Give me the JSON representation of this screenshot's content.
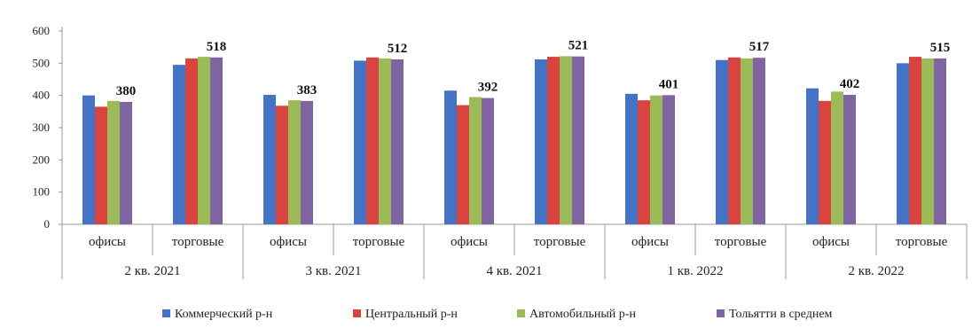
{
  "chart_data": {
    "type": "bar",
    "ylim": [
      0,
      600
    ],
    "yticks": [
      0,
      100,
      200,
      300,
      400,
      500,
      600
    ],
    "grid": false,
    "legend_position": "bottom",
    "groups": [
      {
        "label": "2 кв. 2021",
        "categories": [
          "офисы",
          "торговые"
        ]
      },
      {
        "label": "3 кв. 2021",
        "categories": [
          "офисы",
          "торговые"
        ]
      },
      {
        "label": "4 кв. 2021",
        "categories": [
          "офисы",
          "торговые"
        ]
      },
      {
        "label": "1 кв. 2022",
        "categories": [
          "офисы",
          "торговые"
        ]
      },
      {
        "label": "2 кв. 2022",
        "categories": [
          "офисы",
          "торговые"
        ]
      }
    ],
    "series": [
      {
        "name": "Коммерческий р-н",
        "color": "#4472C4",
        "values": [
          400,
          495,
          402,
          508,
          415,
          512,
          405,
          510,
          422,
          500
        ]
      },
      {
        "name": "Центральный р-н",
        "color": "#D9443E",
        "values": [
          365,
          515,
          368,
          518,
          370,
          520,
          385,
          518,
          383,
          520
        ]
      },
      {
        "name": "Автомобильный р-н",
        "color": "#9BBB59",
        "values": [
          383,
          520,
          385,
          515,
          395,
          522,
          400,
          515,
          412,
          515
        ]
      },
      {
        "name": "Тольятти в среднем",
        "color": "#8064A2",
        "values": [
          380,
          518,
          383,
          512,
          392,
          521,
          401,
          517,
          402,
          515
        ]
      }
    ],
    "data_labels": [
      "380",
      "518",
      "383",
      "512",
      "392",
      "521",
      "401",
      "517",
      "402",
      "515"
    ]
  }
}
